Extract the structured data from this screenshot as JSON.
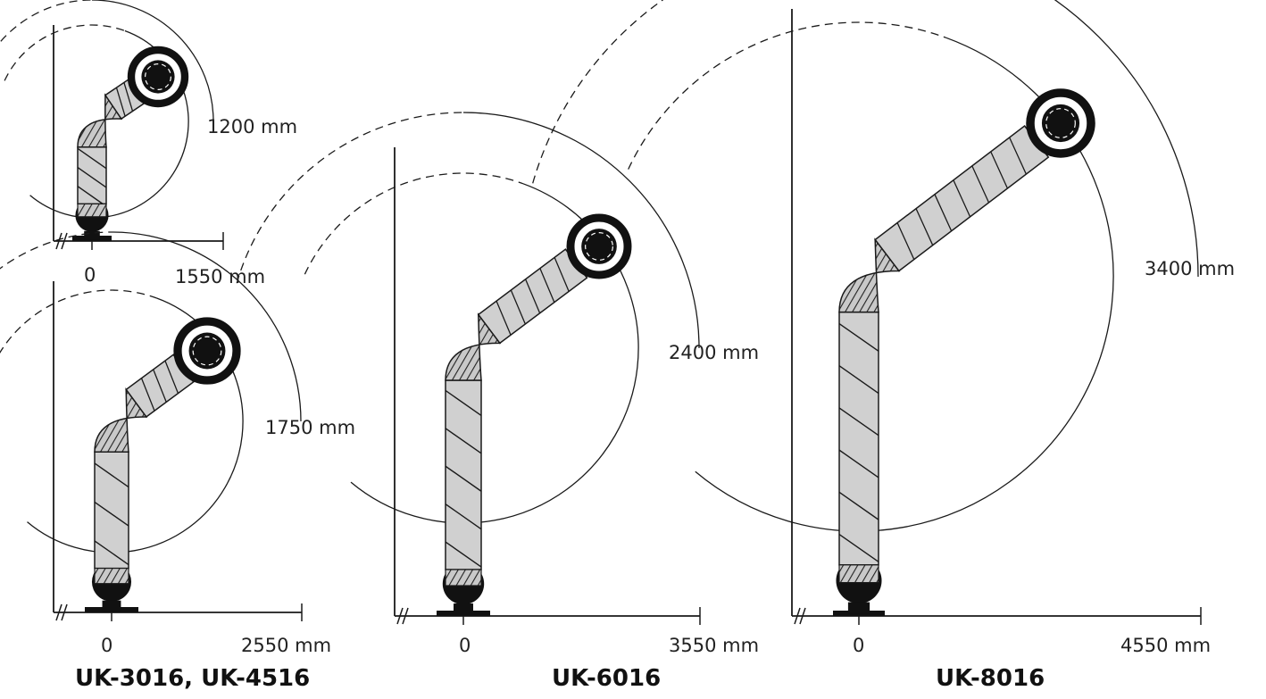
{
  "diagrams": [
    {
      "model_label": "UK-3016, UK-4516",
      "variants": [
        {
          "upper_reach_label": "1200 mm",
          "origin_label": "0",
          "horizontal_reach_label": "1550 mm"
        },
        {
          "upper_reach_label": "1750 mm",
          "origin_label": "0",
          "horizontal_reach_label": "2550 mm"
        }
      ]
    },
    {
      "model_label": "UK-6016",
      "variants": [
        {
          "upper_reach_label": "2400 mm",
          "origin_label": "0",
          "horizontal_reach_label": "3550 mm"
        }
      ]
    },
    {
      "model_label": "UK-8016",
      "variants": [
        {
          "upper_reach_label": "3400 mm",
          "origin_label": "0",
          "horizontal_reach_label": "4550 mm"
        }
      ]
    }
  ],
  "colors": {
    "line": "#1a1a1a",
    "arm_fill": "#d0d0d0",
    "joint": "#111111"
  }
}
